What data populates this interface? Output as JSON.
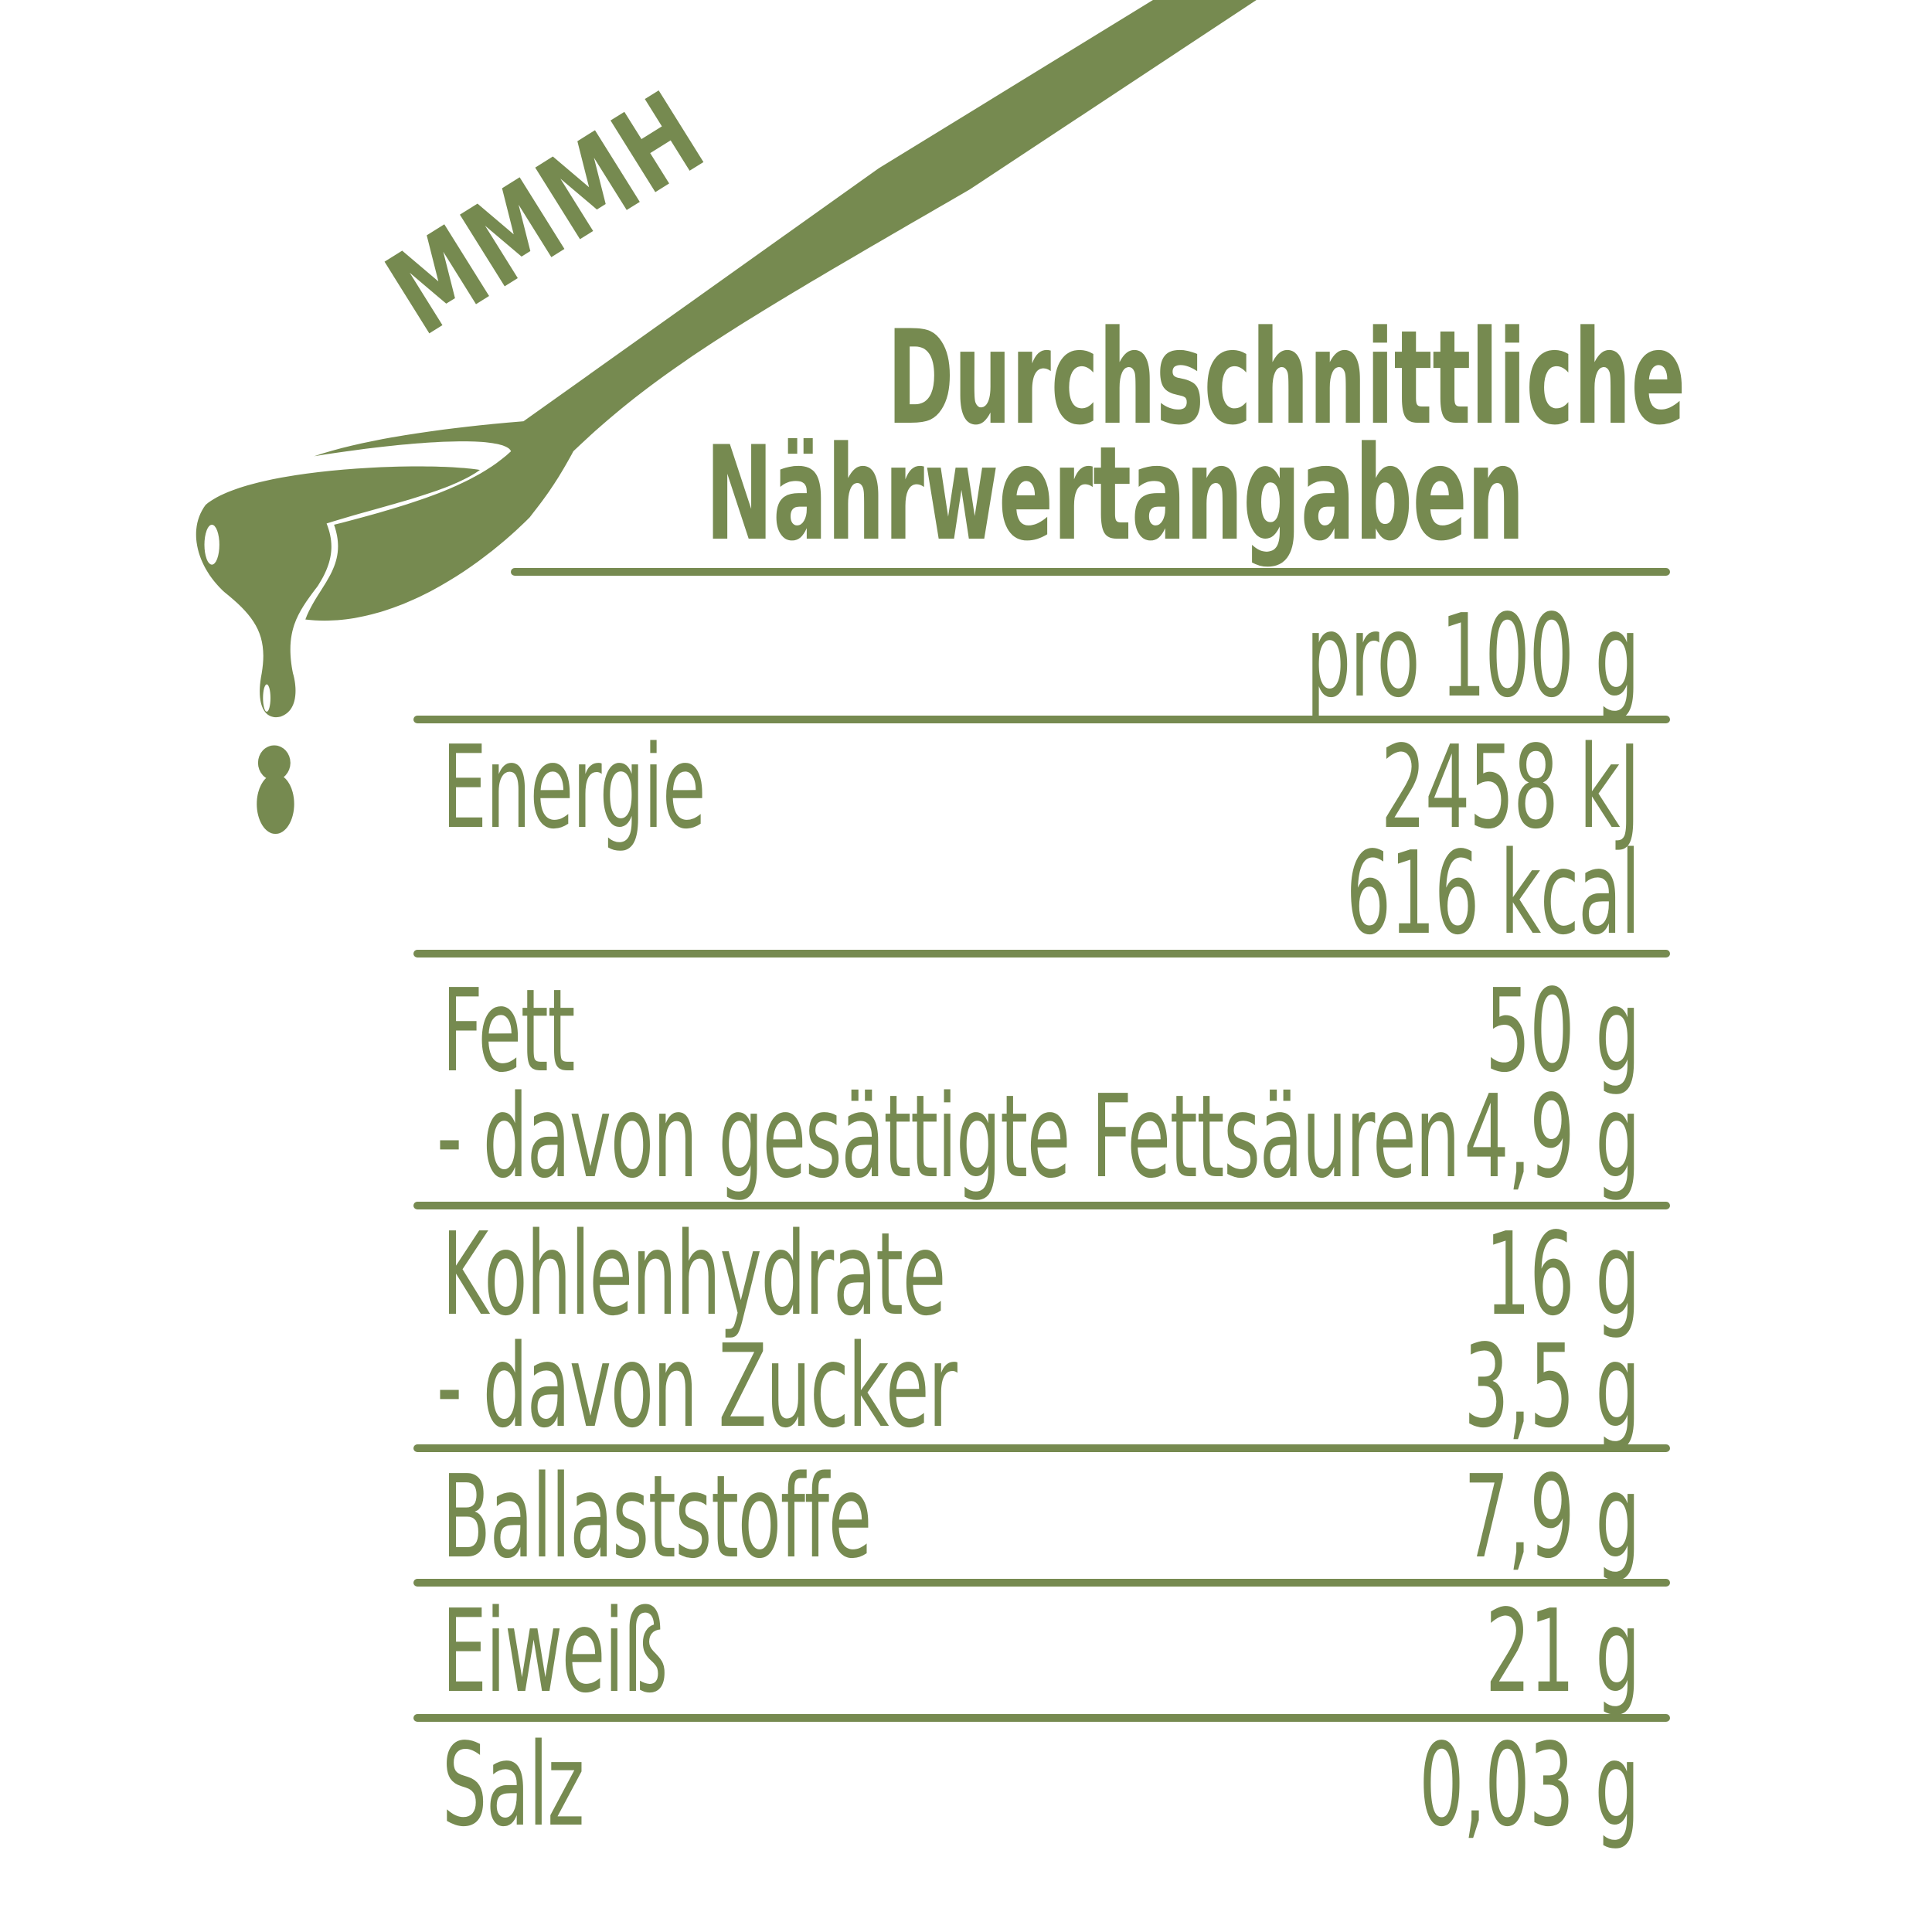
{
  "brand_color": "#768a50",
  "logo": {
    "lettering": "MMMH",
    "icon": "spoon-dripping-icon"
  },
  "title": {
    "line1": "Durchschnittliche",
    "line2": "Nährwertangaben"
  },
  "column_header": "pro 100 g",
  "rows": [
    {
      "label": "Energie",
      "value": "2458 kJ",
      "value2": "616 kcal"
    },
    {
      "label": "Fett",
      "value": "50 g"
    },
    {
      "label": "- davon gesättigte Fettsäuren",
      "value": "4,9 g"
    },
    {
      "label": "Kohlenhydrate",
      "value": "16 g"
    },
    {
      "label": "- davon Zucker",
      "value": "3,5 g"
    },
    {
      "label": "Ballaststoffe",
      "value": "7,9 g"
    },
    {
      "label": "Eiweiß",
      "value": "21 g"
    },
    {
      "label": "Salz",
      "value": "0,03 g"
    }
  ]
}
